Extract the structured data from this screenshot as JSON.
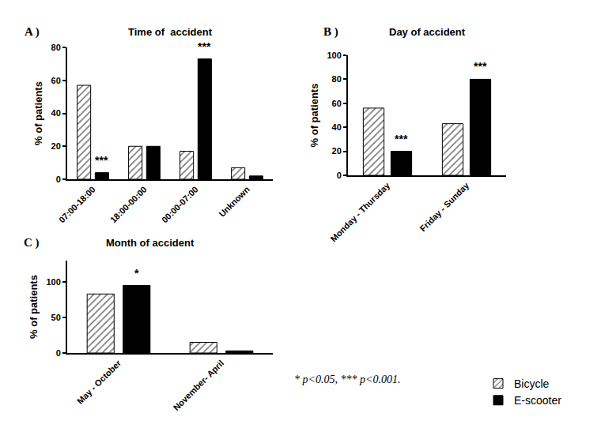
{
  "footnote": "* p<0.05, *** p<0.001.",
  "chart_data": [
    {
      "type": "bar",
      "label": "A )",
      "title": "Time of  accident",
      "y_label": "% of patients",
      "categories": [
        "07:00-18:00",
        "18:00-00:00",
        "00:00-07:00",
        "Unknown"
      ],
      "series": [
        {
          "name": "Bicycle",
          "color": "#6f6f6f",
          "marker": "hatched",
          "values": [
            57,
            20,
            17,
            7
          ]
        },
        {
          "name": "E-scooter",
          "color": "#000000",
          "marker": "solid",
          "values": [
            4,
            20,
            73,
            2
          ]
        }
      ],
      "ylim": [
        0,
        80
      ],
      "yticks": [
        0,
        20,
        40,
        60,
        80
      ],
      "grid": false,
      "annotations": [
        {
          "text": "***",
          "category": "07:00-18:00",
          "series": "E-scooter"
        },
        {
          "text": "***",
          "category": "00:00-07:00",
          "series": "E-scooter"
        }
      ]
    },
    {
      "type": "bar",
      "label": "B )",
      "title": "Day of accident",
      "y_label": "% of patients",
      "categories": [
        "Monday - Thursday",
        "Friday - Sunday"
      ],
      "series": [
        {
          "name": "Bicycle",
          "color": "#6f6f6f",
          "marker": "hatched",
          "values": [
            56,
            43
          ]
        },
        {
          "name": "E-scooter",
          "color": "#000000",
          "marker": "solid",
          "values": [
            20,
            80
          ]
        }
      ],
      "ylim": [
        0,
        100
      ],
      "yticks": [
        0,
        20,
        40,
        60,
        80,
        100
      ],
      "grid": false,
      "annotations": [
        {
          "text": "***",
          "category": "Monday - Thursday",
          "series": "E-scooter"
        },
        {
          "text": "***",
          "category": "Friday - Sunday",
          "series": "E-scooter"
        }
      ]
    },
    {
      "type": "bar",
      "label": "C )",
      "title": "Month of accident",
      "y_label": "% of patients",
      "categories": [
        "May - October",
        "November- April"
      ],
      "series": [
        {
          "name": "Bicycle",
          "color": "#6f6f6f",
          "marker": "hatched",
          "values": [
            83,
            15
          ]
        },
        {
          "name": "E-scooter",
          "color": "#000000",
          "marker": "solid",
          "values": [
            95,
            3
          ]
        }
      ],
      "ylim": [
        0,
        130
      ],
      "yticks": [
        0,
        50,
        100
      ],
      "grid": false,
      "legend": "bottom right",
      "annotations": [
        {
          "text": "*",
          "category": "May - October",
          "series": "E-scooter"
        }
      ]
    }
  ]
}
